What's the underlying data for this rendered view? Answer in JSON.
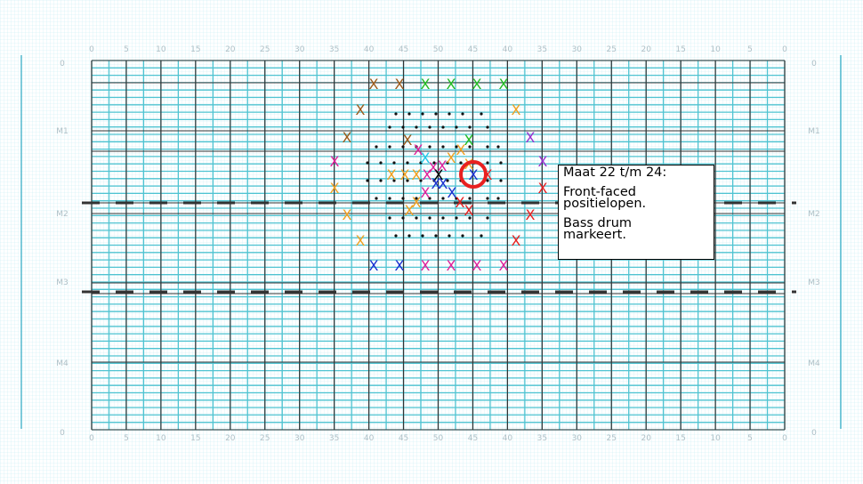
{
  "field": {
    "yard_labels": [
      "0",
      "5",
      "10",
      "15",
      "20",
      "25",
      "30",
      "35",
      "40",
      "45",
      "50",
      "45",
      "40",
      "35",
      "30",
      "25",
      "20",
      "15",
      "10",
      "5",
      "0"
    ],
    "row_labels": [
      "0",
      "M1",
      "M2",
      "M3",
      "M4",
      "0"
    ]
  },
  "note": {
    "title": "Maat 22 t/m 24:",
    "line2": "Front-faced\npositielopen.",
    "line3": "Bass drum\nmarkeert."
  },
  "colors": {
    "brown": "#9c5a1a",
    "orange": "#f0a020",
    "green": "#22bb22",
    "red": "#e82020",
    "magenta": "#e0209a",
    "blue": "#1a30d0",
    "purple": "#9a30d0",
    "cyan": "#20c8e8",
    "highlight_ring": "#e82020"
  },
  "markers": [
    {
      "c": "brown"
    },
    {
      "c": "brown"
    },
    {
      "c": "green"
    },
    {
      "c": "green"
    },
    {
      "c": "green"
    },
    {
      "c": "green"
    },
    {
      "c": "brown"
    },
    {
      "c": "orange"
    },
    {
      "c": "brown"
    },
    {
      "c": "purple"
    },
    {
      "c": "brown"
    },
    {
      "c": "magenta"
    },
    {
      "c": "green"
    },
    {
      "c": "cyan"
    },
    {
      "c": "orange"
    },
    {
      "c": "magenta"
    },
    {
      "c": "magenta"
    },
    {
      "c": "orange"
    },
    {
      "c": "purple"
    },
    {
      "c": "magenta"
    },
    {
      "c": "orange"
    },
    {
      "c": "orange"
    },
    {
      "c": "orange"
    },
    {
      "c": "black"
    },
    {
      "c": "magenta"
    },
    {
      "c": "blue"
    },
    {
      "c": "red"
    },
    {
      "c": "orange"
    },
    {
      "c": "blue"
    },
    {
      "c": "blue"
    },
    {
      "c": "magenta"
    },
    {
      "c": "red"
    },
    {
      "c": "orange"
    },
    {
      "c": "red"
    },
    {
      "c": "red"
    },
    {
      "c": "orange"
    },
    {
      "c": "orange"
    },
    {
      "c": "red"
    },
    {
      "c": "orange"
    },
    {
      "c": "red"
    },
    {
      "c": "blue"
    },
    {
      "c": "blue"
    },
    {
      "c": "magenta"
    },
    {
      "c": "magenta"
    },
    {
      "c": "magenta"
    },
    {
      "c": "magenta"
    },
    {
      "c": "orange"
    },
    {
      "c": "blue"
    }
  ]
}
